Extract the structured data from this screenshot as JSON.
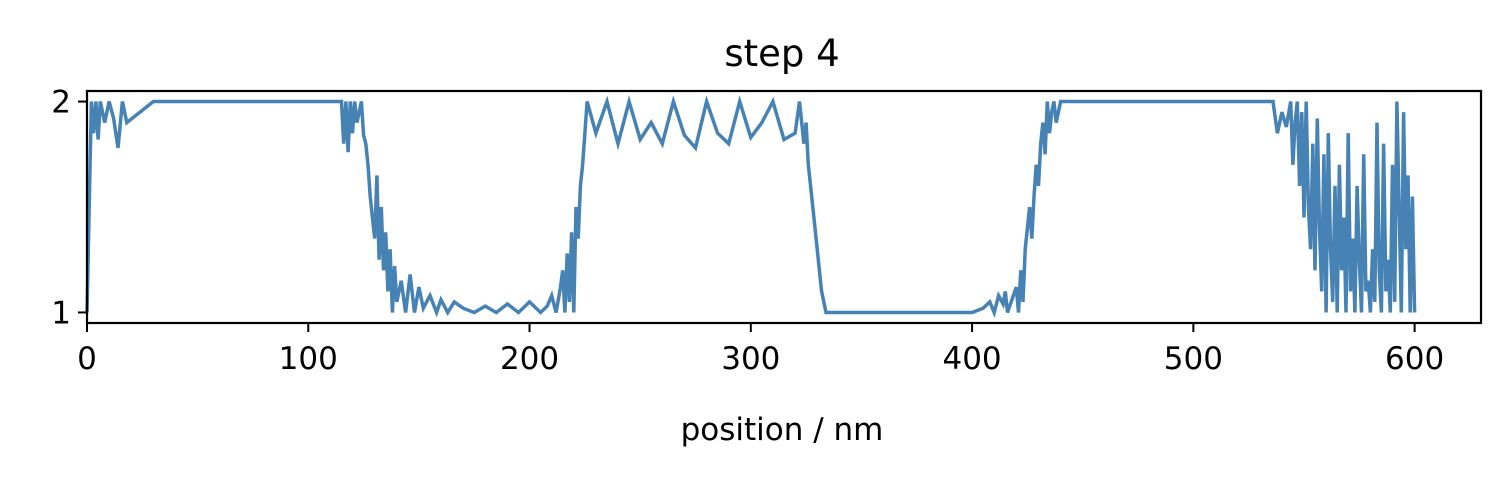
{
  "chart_data": {
    "type": "line",
    "title": "step 4",
    "xlabel": "position / nm",
    "ylabel": "",
    "xlim": [
      0,
      630
    ],
    "ylim": [
      0.95,
      2.05
    ],
    "x_ticks": [
      0,
      100,
      200,
      300,
      400,
      500,
      600
    ],
    "y_ticks": [
      1,
      2
    ],
    "grid": false,
    "legend": "none",
    "series_color": "#4682b4",
    "series": [
      {
        "x": [
          0,
          1,
          2,
          3,
          4,
          5,
          6,
          8,
          10,
          12,
          14,
          16,
          18,
          30,
          60,
          90,
          115,
          116,
          117,
          118,
          119,
          120,
          121,
          122,
          123,
          124,
          125,
          126,
          127,
          128,
          129,
          130,
          131,
          132,
          133,
          134,
          135,
          136,
          137,
          138,
          139,
          140,
          142,
          144,
          146,
          148,
          150,
          152,
          155,
          158,
          160,
          163,
          166,
          170,
          175,
          180,
          185,
          190,
          195,
          200,
          205,
          208,
          210,
          212,
          214,
          215,
          216,
          217,
          218,
          219,
          220,
          221,
          222,
          223,
          224,
          225,
          226,
          230,
          235,
          240,
          245,
          250,
          255,
          260,
          265,
          270,
          275,
          280,
          285,
          290,
          295,
          300,
          305,
          310,
          315,
          320,
          322,
          324,
          325,
          326,
          327,
          328,
          329,
          330,
          331,
          332,
          333,
          334,
          336,
          340,
          360,
          380,
          400,
          405,
          408,
          410,
          412,
          414,
          415,
          416,
          418,
          420,
          421,
          422,
          423,
          424,
          425,
          426,
          427,
          428,
          429,
          430,
          431,
          432,
          433,
          434,
          435,
          436,
          437,
          438,
          440,
          460,
          480,
          500,
          520,
          535,
          536,
          538,
          540,
          542,
          544,
          545,
          546,
          547,
          548,
          549,
          550,
          551,
          552,
          553,
          554,
          555,
          556,
          557,
          558,
          559,
          560,
          561,
          562,
          563,
          564,
          565,
          566,
          567,
          568,
          569,
          570,
          571,
          572,
          573,
          574,
          575,
          576,
          577,
          578,
          579,
          580,
          581,
          582,
          583,
          584,
          585,
          586,
          587,
          588,
          589,
          590,
          591,
          592,
          593,
          594,
          595,
          596,
          597,
          598,
          599,
          600
        ],
        "y": [
          1.0,
          1.5,
          2.0,
          1.85,
          2.0,
          1.82,
          2.0,
          1.9,
          2.0,
          1.92,
          1.78,
          2.0,
          1.9,
          2.0,
          2.0,
          2.0,
          2.0,
          1.8,
          2.0,
          1.76,
          2.0,
          1.85,
          2.0,
          1.9,
          1.95,
          2.0,
          1.84,
          1.8,
          1.7,
          1.55,
          1.45,
          1.35,
          1.65,
          1.25,
          1.5,
          1.2,
          1.38,
          1.1,
          1.3,
          1.0,
          1.22,
          1.05,
          1.15,
          1.0,
          1.18,
          1.0,
          1.12,
          1.02,
          1.08,
          1.0,
          1.06,
          1.0,
          1.05,
          1.02,
          1.0,
          1.03,
          1.0,
          1.04,
          1.0,
          1.05,
          1.0,
          1.03,
          1.08,
          1.0,
          1.12,
          1.2,
          1.0,
          1.28,
          1.05,
          1.38,
          1.0,
          1.5,
          1.35,
          1.6,
          1.7,
          1.85,
          2.0,
          1.85,
          2.0,
          1.8,
          2.0,
          1.82,
          1.9,
          1.8,
          2.0,
          1.84,
          1.78,
          2.0,
          1.85,
          1.8,
          2.0,
          1.83,
          1.9,
          2.0,
          1.82,
          1.85,
          2.0,
          1.8,
          1.9,
          1.7,
          1.6,
          1.5,
          1.4,
          1.3,
          1.2,
          1.1,
          1.05,
          1.0,
          1.0,
          1.0,
          1.0,
          1.0,
          1.0,
          1.02,
          1.05,
          1.0,
          1.08,
          1.04,
          1.1,
          1.0,
          1.06,
          1.12,
          1.0,
          1.2,
          1.05,
          1.3,
          1.4,
          1.5,
          1.35,
          1.55,
          1.7,
          1.6,
          1.8,
          1.9,
          1.75,
          2.0,
          1.85,
          1.95,
          2.0,
          1.9,
          2.0,
          2.0,
          2.0,
          2.0,
          2.0,
          2.0,
          2.0,
          1.85,
          1.95,
          1.88,
          2.0,
          1.7,
          1.9,
          2.0,
          1.6,
          1.95,
          1.45,
          2.0,
          1.5,
          1.3,
          1.8,
          1.2,
          1.92,
          1.4,
          1.1,
          1.75,
          1.0,
          1.85,
          1.3,
          1.05,
          1.6,
          1.0,
          1.7,
          1.2,
          1.45,
          1.0,
          1.85,
          1.1,
          1.35,
          1.0,
          1.6,
          1.25,
          1.0,
          1.75,
          1.1,
          1.15,
          1.0,
          1.3,
          1.05,
          1.9,
          1.2,
          1.0,
          1.8,
          1.1,
          1.25,
          1.0,
          1.7,
          1.05,
          2.0,
          1.5,
          1.0,
          1.95,
          1.3,
          1.65,
          1.0,
          1.55,
          1.0
        ]
      }
    ]
  }
}
